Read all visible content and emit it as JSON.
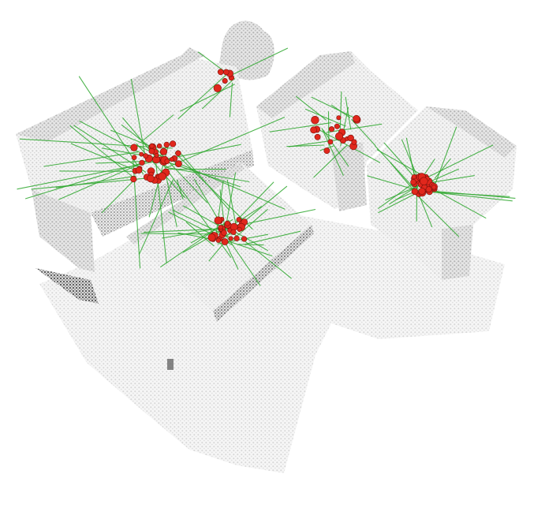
{
  "image": {
    "subject": "point-cloud-scene",
    "text": ""
  },
  "colors": {
    "background": "#ffffff",
    "point_light": "#e2e2e2",
    "point_mid": "#c4c4c4",
    "point_dark": "#8e8e8e",
    "shadow": "#3f3f3f",
    "vote_line": "#2fa82f",
    "vote_point": "#e1271c",
    "vote_point_edge": "#7a0f0a"
  },
  "objects": [
    {
      "name": "sofa-left-object",
      "type": "sofa",
      "vote_count": 38
    },
    {
      "name": "plant-object",
      "type": "plant",
      "vote_count": 6
    },
    {
      "name": "armchair-middle-object",
      "type": "armchair",
      "vote_count": 18
    },
    {
      "name": "armchair-right-object",
      "type": "armchair",
      "vote_count": 26
    },
    {
      "name": "coffee-table-object",
      "type": "table",
      "vote_count": 30
    }
  ]
}
